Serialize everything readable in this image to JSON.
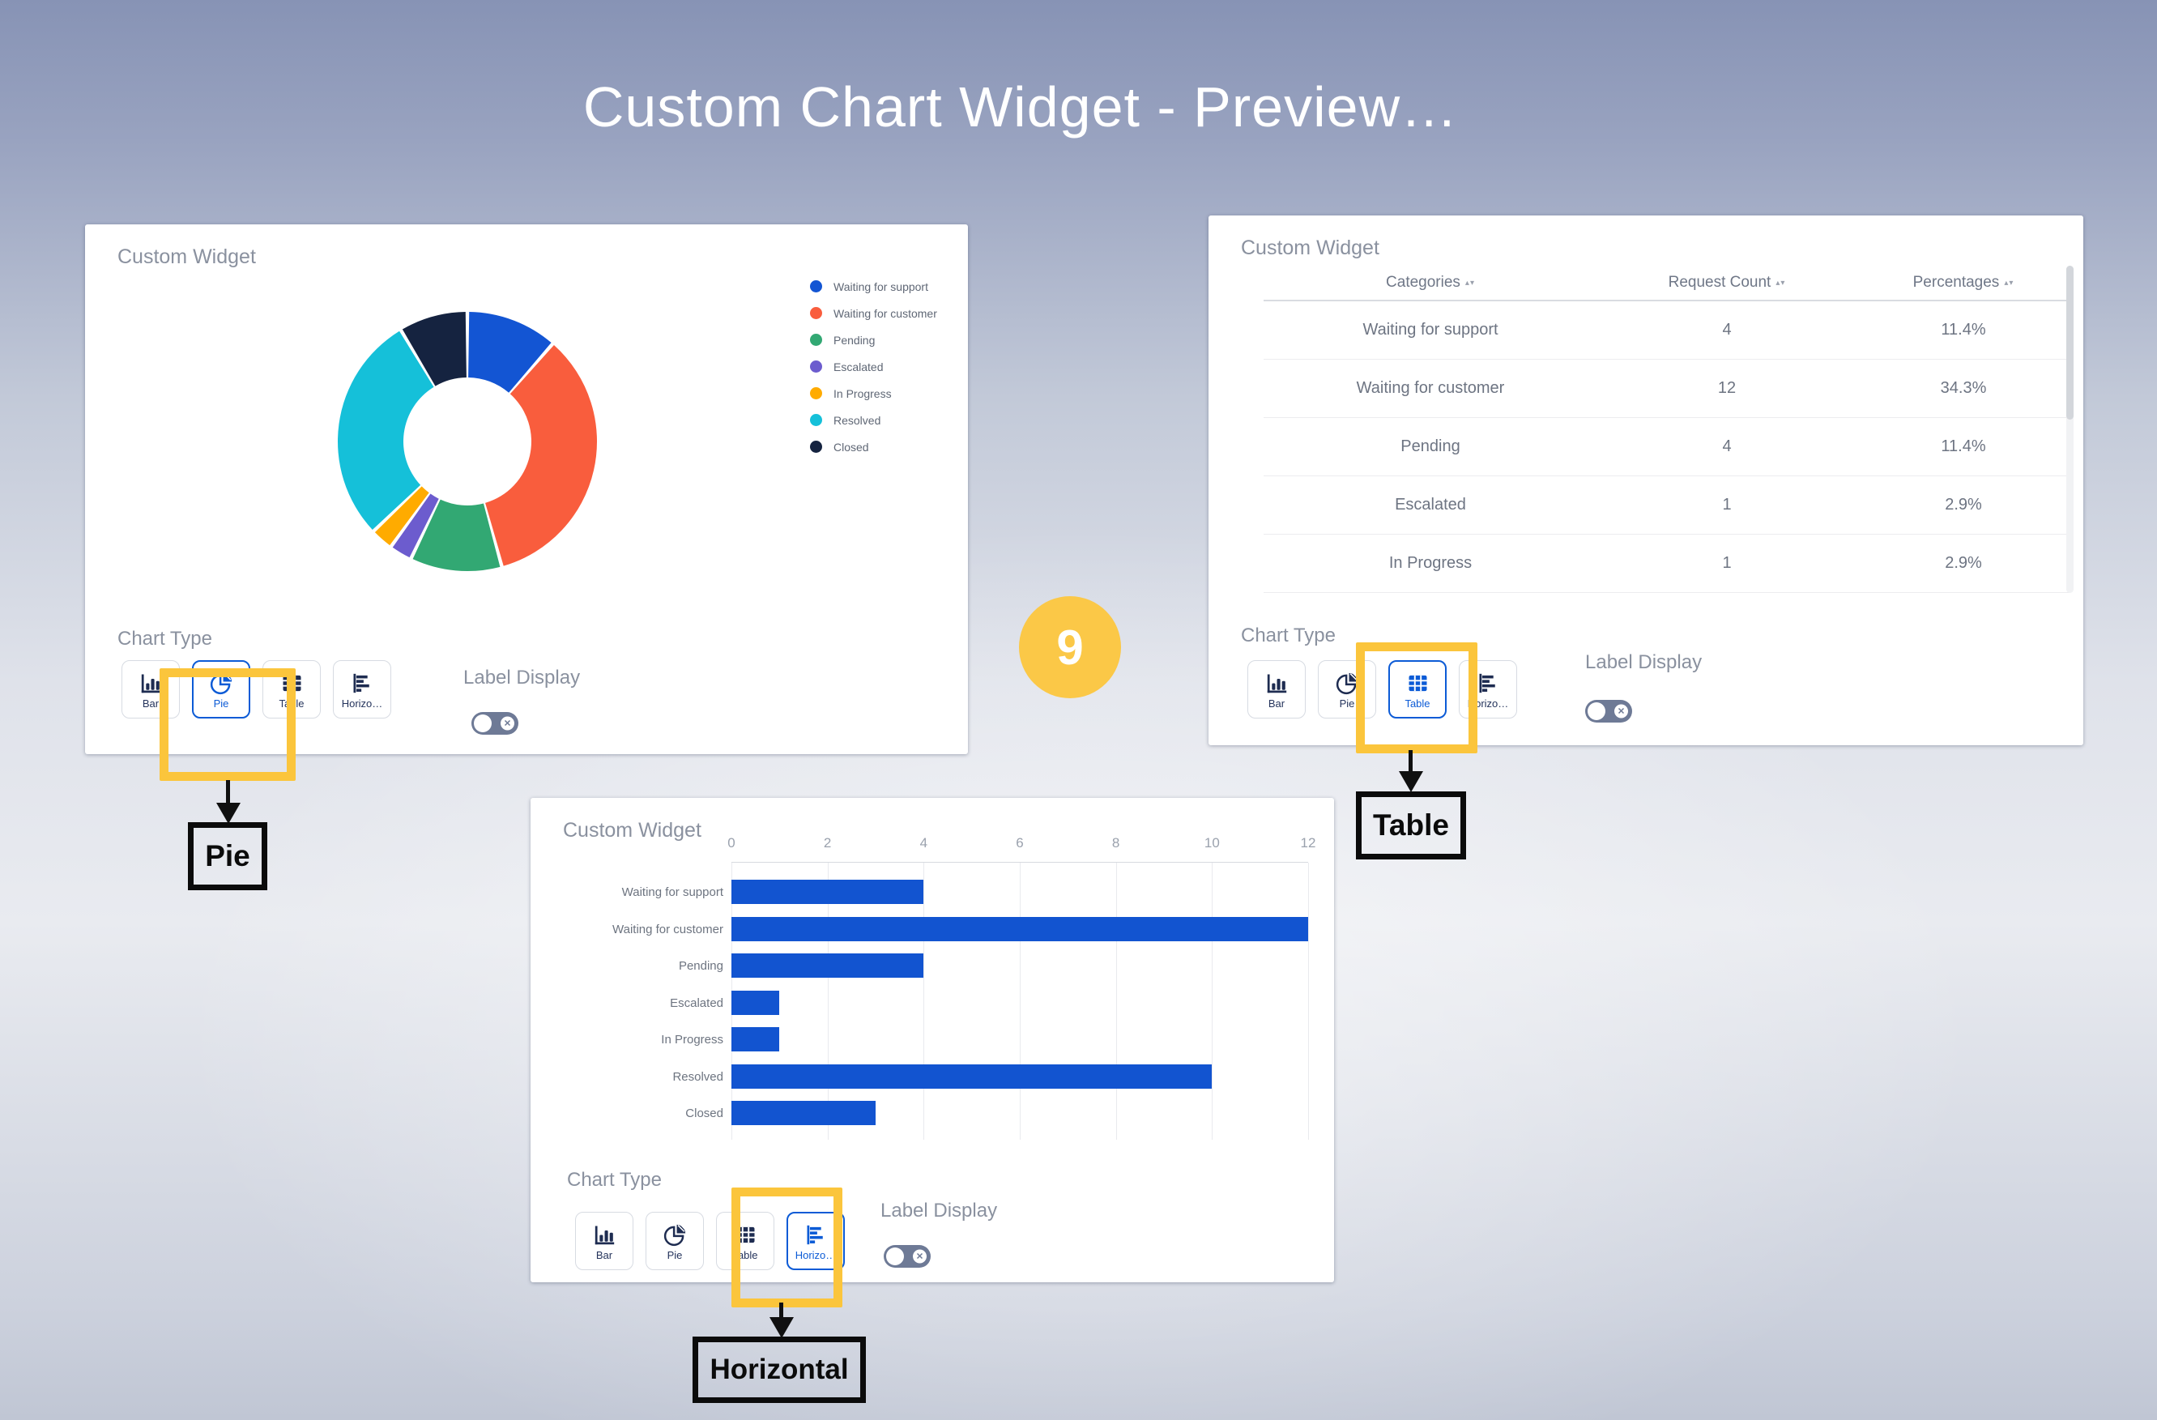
{
  "page": {
    "title": "Custom Chart Widget - Preview…",
    "step_badge": "9"
  },
  "shared": {
    "widget_title": "Custom Widget",
    "chart_type_label": "Chart Type",
    "label_display_label": "Label Display",
    "chart_types": [
      {
        "id": "bar",
        "label": "Bar"
      },
      {
        "id": "pie",
        "label": "Pie"
      },
      {
        "id": "table",
        "label": "Table"
      },
      {
        "id": "horizontal",
        "label": "Horizo…"
      }
    ],
    "label_display_state": "off"
  },
  "widgets": {
    "pie": {
      "selected_type": "pie",
      "callout": "Pie"
    },
    "table": {
      "selected_type": "table",
      "callout": "Table"
    },
    "horizontal": {
      "selected_type": "horizontal",
      "callout": "Horizontal"
    }
  },
  "colors": {
    "accent_blue": "#0c5bd6",
    "bar_blue": "#1254d0",
    "icon_navy": "#1e2c51",
    "highlight_yellow": "#fbc53c",
    "badge_yellow": "#fbc847",
    "title_white": "#ffffff"
  },
  "chart_data": [
    {
      "type": "pie",
      "style": "donut",
      "title": "Custom Widget",
      "legend_position": "right",
      "categories": [
        "Waiting for support",
        "Waiting for customer",
        "Pending",
        "Escalated",
        "In Progress",
        "Resolved",
        "Closed"
      ],
      "values": [
        4,
        12,
        4,
        1,
        1,
        10,
        3
      ],
      "colors": [
        "#1355d3",
        "#f95d3d",
        "#32a873",
        "#6c5cce",
        "#ffab00",
        "#15c0d9",
        "#152340"
      ]
    },
    {
      "type": "table",
      "title": "Custom Widget",
      "columns": [
        "Categories",
        "Request Count",
        "Percentages"
      ],
      "rows": [
        [
          "Waiting for support",
          "4",
          "11.4%"
        ],
        [
          "Waiting for customer",
          "12",
          "34.3%"
        ],
        [
          "Pending",
          "4",
          "11.4%"
        ],
        [
          "Escalated",
          "1",
          "2.9%"
        ],
        [
          "In Progress",
          "1",
          "2.9%"
        ]
      ]
    },
    {
      "type": "bar",
      "orientation": "horizontal",
      "title": "Custom Widget",
      "categories": [
        "Waiting for support",
        "Waiting for customer",
        "Pending",
        "Escalated",
        "In Progress",
        "Resolved",
        "Closed"
      ],
      "values": [
        4,
        12,
        4,
        1,
        1,
        10,
        3
      ],
      "xlim": [
        0,
        12
      ],
      "xticks": [
        0,
        2,
        4,
        6,
        8,
        10,
        12
      ],
      "bar_color": "#1254d0",
      "grid": true
    }
  ]
}
